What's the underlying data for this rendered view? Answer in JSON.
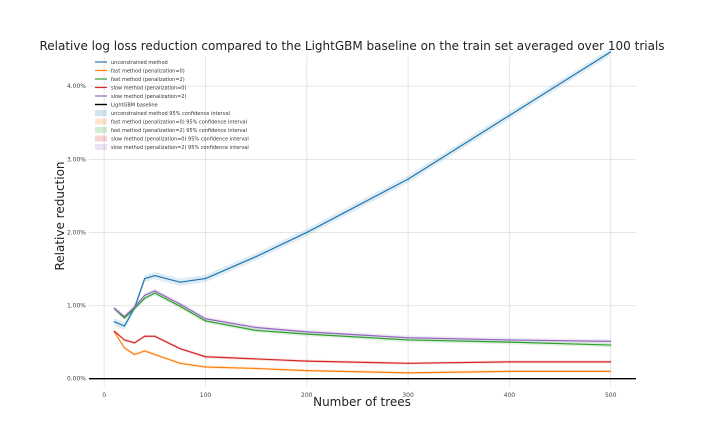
{
  "chart_data": {
    "type": "line",
    "title": "Relative log loss reduction compared to the LightGBM baseline on the train set averaged over 100 trials",
    "xlabel": "Number of trees",
    "ylabel": "Relative reduction",
    "xlim": [
      -15,
      525
    ],
    "ylim": [
      -0.1,
      4.4
    ],
    "xticks": [
      0,
      100,
      200,
      300,
      400,
      500
    ],
    "xtick_labels": [
      "0",
      "100",
      "200",
      "300",
      "400",
      "500"
    ],
    "yticks": [
      0,
      1,
      2,
      3,
      4
    ],
    "ytick_labels": [
      "0.00%",
      "1.00%",
      "2.00%",
      "3.00%",
      "4.00%"
    ],
    "grid": true,
    "legend_position": "top-left",
    "baseline": {
      "name": "LightGBM baseline",
      "y": 0,
      "color": "#000000"
    },
    "x": [
      10,
      20,
      30,
      40,
      50,
      75,
      100,
      150,
      200,
      300,
      400,
      500
    ],
    "series": [
      {
        "name": "unconstrained method",
        "ci_name": "unconstrained method 95% confidence interval",
        "color": "#1f77b4",
        "values": [
          0.78,
          0.72,
          0.97,
          1.37,
          1.41,
          1.32,
          1.37,
          1.67,
          2.0,
          2.73,
          3.6,
          4.47
        ],
        "ci": 0.05
      },
      {
        "name": "fast method (penalization=0)",
        "ci_name": "fast method (penalization=0) 95% confidence interval",
        "color": "#ff7f0e",
        "values": [
          0.64,
          0.42,
          0.33,
          0.38,
          0.33,
          0.21,
          0.16,
          0.14,
          0.11,
          0.08,
          0.1,
          0.1
        ],
        "ci": 0.02
      },
      {
        "name": "fast method (penalization=2)",
        "ci_name": "fast method (penalization=2) 95% confidence interval",
        "color": "#2ca02c",
        "values": [
          0.96,
          0.83,
          0.96,
          1.1,
          1.17,
          0.99,
          0.79,
          0.66,
          0.61,
          0.53,
          0.5,
          0.46
        ],
        "ci": 0.03
      },
      {
        "name": "slow method (penalization=0)",
        "ci_name": "slow method (penalization=0) 95% confidence interval",
        "color": "#d62728",
        "values": [
          0.65,
          0.53,
          0.49,
          0.58,
          0.58,
          0.41,
          0.3,
          0.27,
          0.24,
          0.21,
          0.23,
          0.23
        ],
        "ci": 0.02
      },
      {
        "name": "slow method (penalization=2)",
        "ci_name": "slow method (penalization=2) 95% confidence interval",
        "color": "#9467bd",
        "values": [
          0.96,
          0.85,
          0.98,
          1.14,
          1.2,
          1.02,
          0.82,
          0.7,
          0.64,
          0.56,
          0.53,
          0.51
        ],
        "ci": 0.03
      }
    ]
  }
}
